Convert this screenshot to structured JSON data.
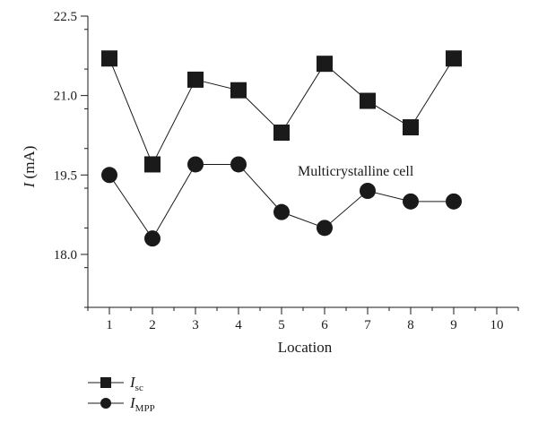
{
  "chart_data": {
    "type": "line",
    "ylabel_italic": "I",
    "ylabel_unit": " (mA)",
    "xlabel": "Location",
    "annotation": "Multicrystalline cell",
    "xlim": [
      0.5,
      10.5
    ],
    "ylim": [
      17.0,
      22.5
    ],
    "x_ticks": [
      1,
      2,
      3,
      4,
      5,
      6,
      7,
      8,
      9,
      10
    ],
    "y_ticks": [
      18.0,
      19.5,
      21.0,
      22.5
    ],
    "y_tick_labels": [
      "18.0",
      "19.5",
      "21.0",
      "22.5"
    ],
    "grid": false,
    "legend_position": "bottom-left",
    "series": [
      {
        "name_main": "I",
        "name_sub": "sc",
        "marker": "square",
        "x": [
          1,
          2,
          3,
          4,
          5,
          6,
          7,
          8,
          9
        ],
        "values": [
          21.7,
          19.7,
          21.3,
          21.1,
          20.3,
          21.6,
          20.9,
          20.4,
          21.7
        ]
      },
      {
        "name_main": "I",
        "name_sub": "MPP",
        "marker": "circle",
        "x": [
          1,
          2,
          3,
          4,
          5,
          6,
          7,
          8,
          9
        ],
        "values": [
          19.5,
          18.3,
          19.7,
          19.7,
          18.8,
          18.5,
          19.2,
          19.0,
          19.0
        ]
      }
    ],
    "colors": {
      "ink": "#1a1a1a"
    }
  }
}
